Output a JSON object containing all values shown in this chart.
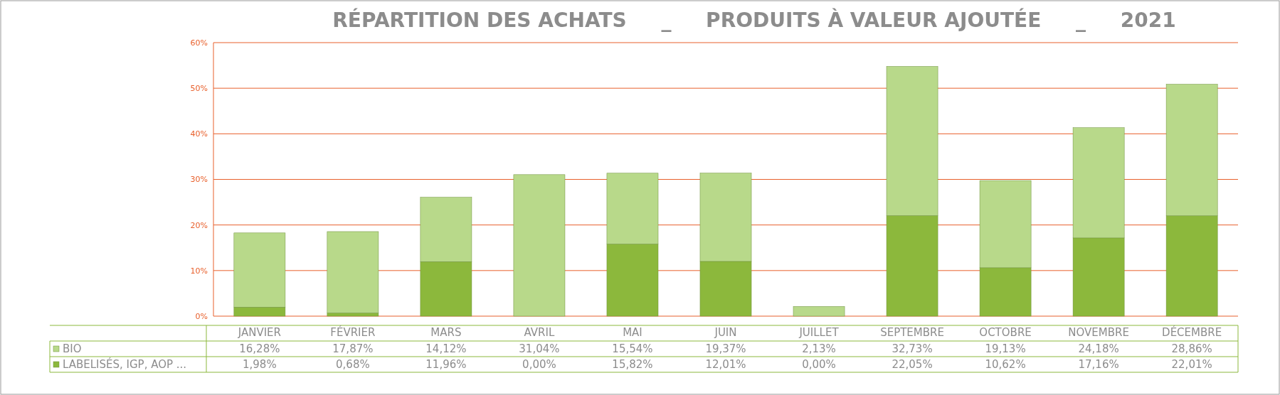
{
  "chart_data": {
    "type": "bar",
    "title": "RÉPARTITION DES ACHATS     _     PRODUITS À VALEUR AJOUTÉE     _     2021",
    "stacked": true,
    "categories": [
      "JANVIER",
      "FÉVRIER",
      "MARS",
      "AVRIL",
      "MAI",
      "JUIN",
      "JUILLET",
      "SEPTEMBRE",
      "OCTOBRE",
      "NOVEMBRE",
      "DÉCEMBRE"
    ],
    "series": [
      {
        "name": "LABELISÉS, IGP, AOP ...",
        "color": "#8cb83c",
        "values": [
          1.98,
          0.68,
          11.96,
          0,
          15.82,
          12.01,
          0,
          22.05,
          10.62,
          17.16,
          22.01
        ],
        "value_labels": [
          "1,98%",
          "0,68%",
          "11,96%",
          "0,00%",
          "15,82%",
          "12,01%",
          "0,00%",
          "22,05%",
          "10,62%",
          "17,16%",
          "22,01%"
        ]
      },
      {
        "name": "BIO",
        "color": "#b8d98a",
        "values": [
          16.28,
          17.87,
          14.12,
          31.04,
          15.54,
          19.37,
          2.13,
          32.73,
          19.13,
          24.18,
          28.86
        ],
        "value_labels": [
          "16,28%",
          "17,87%",
          "14,12%",
          "31,04%",
          "15,54%",
          "19,37%",
          "2,13%",
          "32,73%",
          "19,13%",
          "24,18%",
          "28,86%"
        ]
      }
    ],
    "ylim": [
      0,
      60
    ],
    "yticks": [
      {
        "value": 0,
        "label": "0%"
      },
      {
        "value": 10,
        "label": "10%"
      },
      {
        "value": 20,
        "label": "20%"
      },
      {
        "value": 30,
        "label": "30%"
      },
      {
        "value": 40,
        "label": "40%"
      },
      {
        "value": 50,
        "label": "50%"
      },
      {
        "value": 60,
        "label": "60%"
      }
    ],
    "grid": "y",
    "legend": "bottom"
  }
}
